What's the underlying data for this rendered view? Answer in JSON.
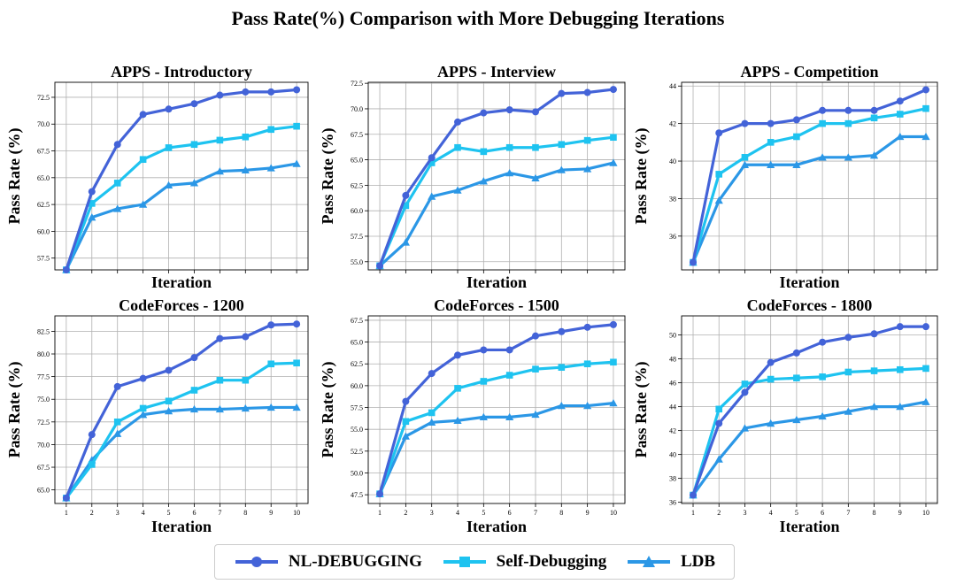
{
  "title": "Pass Rate(%) Comparison with More Debugging Iterations",
  "colors": {
    "NL-DEBUGGING": "#4363d8",
    "Self-Debugging": "#1ec3f0",
    "LDB": "#2b97e6"
  },
  "legend": [
    {
      "name": "NL-DEBUGGING",
      "marker": "circle"
    },
    {
      "name": "Self-Debugging",
      "marker": "square"
    },
    {
      "name": "LDB",
      "marker": "triangle"
    }
  ],
  "chart_data": [
    {
      "type": "line",
      "title": "APPS - Introductory",
      "xlabel": "Iteration",
      "ylabel": "Pass Rate (%)",
      "x": [
        1,
        2,
        3,
        4,
        5,
        6,
        7,
        8,
        9,
        10
      ],
      "show_x_ticklabels": false,
      "ylim": [
        56.4,
        73.9
      ],
      "yticks": [
        "57.5",
        "60.0",
        "62.5",
        "65.0",
        "67.5",
        "70.0",
        "72.5"
      ],
      "grid": true,
      "series": [
        {
          "name": "NL-DEBUGGING",
          "marker": "circle",
          "values": [
            56.4,
            63.7,
            68.1,
            70.9,
            71.4,
            71.9,
            72.7,
            73.0,
            73.0,
            73.2
          ]
        },
        {
          "name": "Self-Debugging",
          "marker": "square",
          "values": [
            56.4,
            62.6,
            64.5,
            66.7,
            67.8,
            68.1,
            68.5,
            68.8,
            69.5,
            69.8
          ]
        },
        {
          "name": "LDB",
          "marker": "triangle",
          "values": [
            56.4,
            61.3,
            62.1,
            62.5,
            64.3,
            64.5,
            65.6,
            65.7,
            65.9,
            66.3
          ]
        }
      ]
    },
    {
      "type": "line",
      "title": "APPS - Interview",
      "xlabel": "Iteration",
      "ylabel": "Pass Rate (%)",
      "x": [
        1,
        2,
        3,
        4,
        5,
        6,
        7,
        8,
        9,
        10
      ],
      "show_x_ticklabels": false,
      "ylim": [
        54.2,
        72.6
      ],
      "yticks": [
        "55.0",
        "57.5",
        "60.0",
        "62.5",
        "65.0",
        "67.5",
        "70.0",
        "72.5"
      ],
      "grid": true,
      "series": [
        {
          "name": "NL-DEBUGGING",
          "marker": "circle",
          "values": [
            54.6,
            61.5,
            65.2,
            68.7,
            69.6,
            69.9,
            69.7,
            71.5,
            71.6,
            71.9
          ]
        },
        {
          "name": "Self-Debugging",
          "marker": "square",
          "values": [
            54.6,
            60.5,
            64.7,
            66.2,
            65.8,
            66.2,
            66.2,
            66.5,
            66.9,
            67.2
          ]
        },
        {
          "name": "LDB",
          "marker": "triangle",
          "values": [
            54.6,
            56.9,
            61.4,
            62.0,
            62.9,
            63.7,
            63.2,
            64.0,
            64.1,
            64.7
          ]
        }
      ]
    },
    {
      "type": "line",
      "title": "APPS - Competition",
      "xlabel": "Iteration",
      "ylabel": "Pass Rate (%)",
      "x": [
        1,
        2,
        3,
        4,
        5,
        6,
        7,
        8,
        9,
        10
      ],
      "show_x_ticklabels": false,
      "ylim": [
        34.2,
        44.2
      ],
      "yticks": [
        "36",
        "38",
        "40",
        "42",
        "44"
      ],
      "grid": true,
      "series": [
        {
          "name": "NL-DEBUGGING",
          "marker": "circle",
          "values": [
            34.6,
            41.5,
            42.0,
            42.0,
            42.2,
            42.7,
            42.7,
            42.7,
            43.2,
            43.8
          ]
        },
        {
          "name": "Self-Debugging",
          "marker": "square",
          "values": [
            34.6,
            39.3,
            40.2,
            41.0,
            41.3,
            42.0,
            42.0,
            42.3,
            42.5,
            42.8
          ]
        },
        {
          "name": "LDB",
          "marker": "triangle",
          "values": [
            34.6,
            37.9,
            39.8,
            39.8,
            39.8,
            40.2,
            40.2,
            40.3,
            41.3,
            41.3
          ]
        }
      ]
    },
    {
      "type": "line",
      "title": "CodeForces - 1200",
      "xlabel": "Iteration",
      "ylabel": "Pass Rate (%)",
      "x": [
        1,
        2,
        3,
        4,
        5,
        6,
        7,
        8,
        9,
        10
      ],
      "show_x_ticklabels": true,
      "ylim": [
        63.5,
        84.2
      ],
      "yticks": [
        "65.0",
        "67.5",
        "70.0",
        "72.5",
        "75.0",
        "77.5",
        "80.0",
        "82.5"
      ],
      "grid": true,
      "series": [
        {
          "name": "NL-DEBUGGING",
          "marker": "circle",
          "values": [
            64.1,
            71.1,
            76.4,
            77.3,
            78.2,
            79.6,
            81.7,
            81.9,
            83.2,
            83.3
          ]
        },
        {
          "name": "Self-Debugging",
          "marker": "square",
          "values": [
            64.1,
            67.8,
            72.5,
            74.0,
            74.8,
            76.0,
            77.1,
            77.1,
            78.9,
            79.0
          ]
        },
        {
          "name": "LDB",
          "marker": "triangle",
          "values": [
            64.1,
            68.3,
            71.2,
            73.3,
            73.7,
            73.9,
            73.9,
            74.0,
            74.1,
            74.1
          ]
        }
      ]
    },
    {
      "type": "line",
      "title": "CodeForces - 1500",
      "xlabel": "Iteration",
      "ylabel": "Pass Rate (%)",
      "x": [
        1,
        2,
        3,
        4,
        5,
        6,
        7,
        8,
        9,
        10
      ],
      "show_x_ticklabels": true,
      "ylim": [
        46.5,
        68.0
      ],
      "yticks": [
        "47.5",
        "50.0",
        "52.5",
        "55.0",
        "57.5",
        "60.0",
        "62.5",
        "65.0",
        "67.5"
      ],
      "grid": true,
      "series": [
        {
          "name": "NL-DEBUGGING",
          "marker": "circle",
          "values": [
            47.6,
            58.2,
            61.4,
            63.5,
            64.1,
            64.1,
            65.7,
            66.2,
            66.7,
            67.0
          ]
        },
        {
          "name": "Self-Debugging",
          "marker": "square",
          "values": [
            47.6,
            55.9,
            56.9,
            59.7,
            60.5,
            61.2,
            61.9,
            62.1,
            62.5,
            62.7
          ]
        },
        {
          "name": "LDB",
          "marker": "triangle",
          "values": [
            47.6,
            54.2,
            55.8,
            56.0,
            56.4,
            56.4,
            56.7,
            57.7,
            57.7,
            58.0
          ]
        }
      ]
    },
    {
      "type": "line",
      "title": "CodeForces - 1800",
      "xlabel": "Iteration",
      "ylabel": "Pass Rate (%)",
      "x": [
        1,
        2,
        3,
        4,
        5,
        6,
        7,
        8,
        9,
        10
      ],
      "show_x_ticklabels": true,
      "ylim": [
        35.9,
        51.6
      ],
      "yticks": [
        "36",
        "38",
        "40",
        "42",
        "44",
        "46",
        "48",
        "50"
      ],
      "grid": true,
      "series": [
        {
          "name": "NL-DEBUGGING",
          "marker": "circle",
          "values": [
            36.6,
            42.6,
            45.2,
            47.7,
            48.5,
            49.4,
            49.8,
            50.1,
            50.7,
            50.7
          ]
        },
        {
          "name": "Self-Debugging",
          "marker": "square",
          "values": [
            36.6,
            43.8,
            45.9,
            46.3,
            46.4,
            46.5,
            46.9,
            47.0,
            47.1,
            47.2
          ]
        },
        {
          "name": "LDB",
          "marker": "triangle",
          "values": [
            36.6,
            39.6,
            42.2,
            42.6,
            42.9,
            43.2,
            43.6,
            44.0,
            44.0,
            44.4
          ]
        }
      ]
    }
  ]
}
